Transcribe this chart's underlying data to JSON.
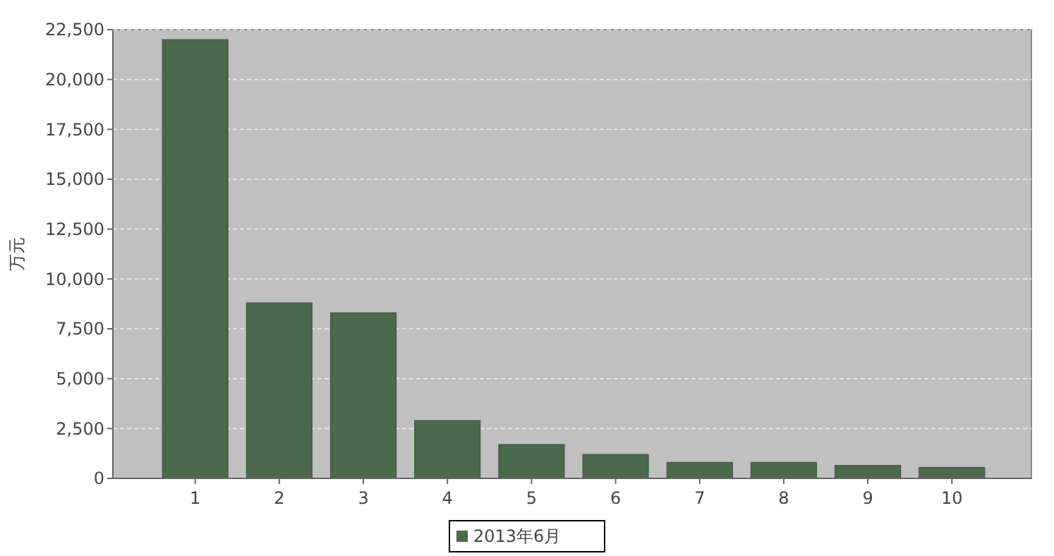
{
  "chart_data": {
    "type": "bar",
    "ylabel": "万元",
    "categories": [
      "1",
      "2",
      "3",
      "4",
      "5",
      "6",
      "7",
      "8",
      "9",
      "10"
    ],
    "series": [
      {
        "name": "2013年6月",
        "color": "#4b6a4b",
        "values": [
          22000,
          8800,
          8300,
          2900,
          1700,
          1200,
          800,
          800,
          650,
          550
        ]
      }
    ],
    "ylim": [
      0,
      22500
    ],
    "yticks": [
      {
        "value": 0,
        "label": "0"
      },
      {
        "value": 2500,
        "label": "2,500"
      },
      {
        "value": 5000,
        "label": "5,000"
      },
      {
        "value": 7500,
        "label": "7,500"
      },
      {
        "value": 10000,
        "label": "10,000"
      },
      {
        "value": 12500,
        "label": "12,500"
      },
      {
        "value": 15000,
        "label": "15,000"
      },
      {
        "value": 17500,
        "label": "17,500"
      },
      {
        "value": 20000,
        "label": "20,000"
      },
      {
        "value": 22500,
        "label": "22,500"
      }
    ],
    "grid": "y",
    "legend": "bottom"
  }
}
